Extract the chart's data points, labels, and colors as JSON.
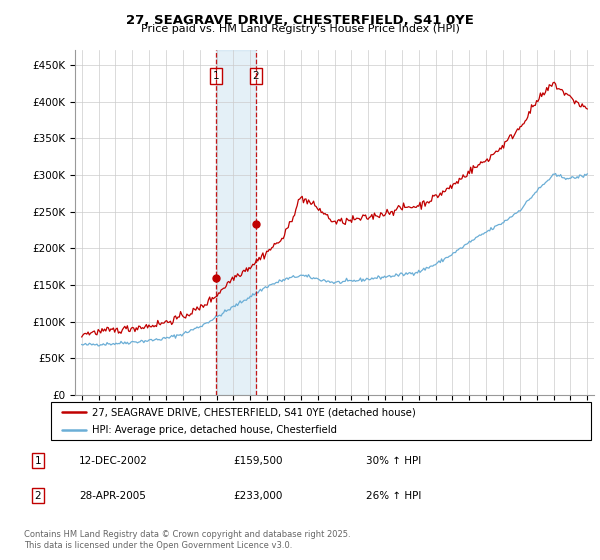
{
  "title": "27, SEAGRAVE DRIVE, CHESTERFIELD, S41 0YE",
  "subtitle": "Price paid vs. HM Land Registry's House Price Index (HPI)",
  "legend_line1": "27, SEAGRAVE DRIVE, CHESTERFIELD, S41 0YE (detached house)",
  "legend_line2": "HPI: Average price, detached house, Chesterfield",
  "transaction1_date": "12-DEC-2002",
  "transaction1_price": "£159,500",
  "transaction1_hpi": "30% ↑ HPI",
  "transaction2_date": "28-APR-2005",
  "transaction2_price": "£233,000",
  "transaction2_hpi": "26% ↑ HPI",
  "vline1_x": 2002.96,
  "vline2_x": 2005.33,
  "shading_start": 2002.96,
  "shading_end": 2005.33,
  "ylabel_ticks": [
    0,
    50000,
    100000,
    150000,
    200000,
    250000,
    300000,
    350000,
    400000,
    450000
  ],
  "ylabel_labels": [
    "£0",
    "£50K",
    "£100K",
    "£150K",
    "£200K",
    "£250K",
    "£300K",
    "£350K",
    "£400K",
    "£450K"
  ],
  "ylim": [
    0,
    470000
  ],
  "xlim_start": 1994.6,
  "xlim_end": 2025.4,
  "hpi_color": "#6baed6",
  "price_color": "#c00000",
  "background_color": "#ffffff",
  "grid_color": "#cccccc",
  "footer1": "Contains HM Land Registry data © Crown copyright and database right 2025.",
  "footer2": "This data is licensed under the Open Government Licence v3.0."
}
